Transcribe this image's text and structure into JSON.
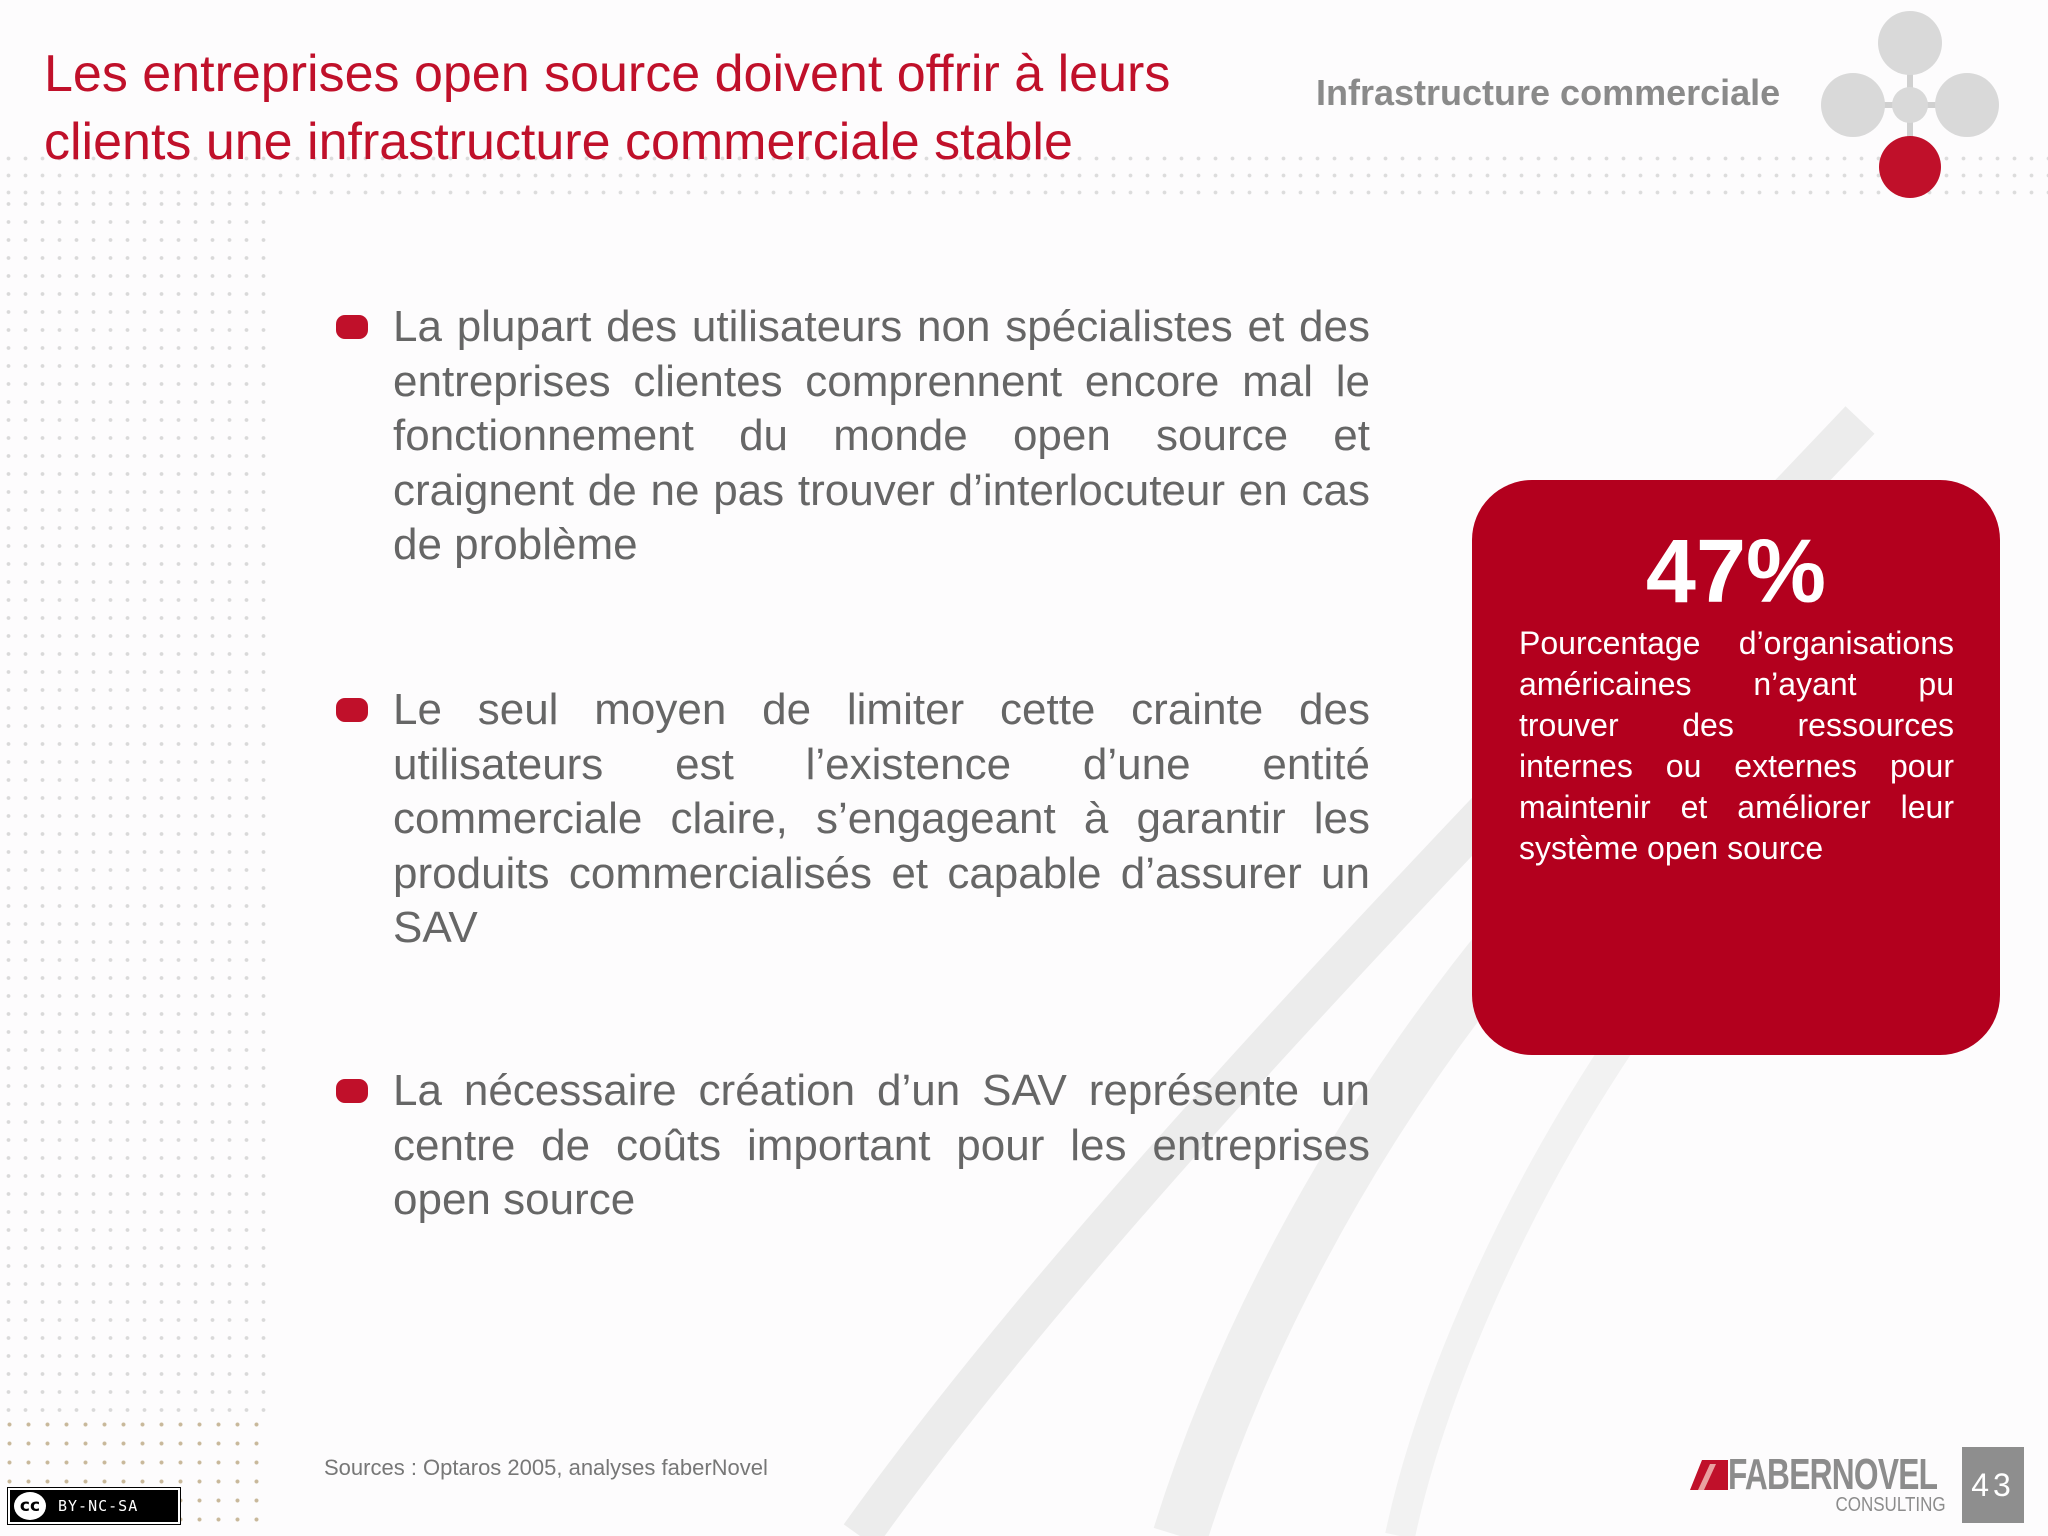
{
  "header": {
    "title_line1": "Les entreprises open source doivent offrir à leurs",
    "title_line2": "clients une infrastructure commerciale stable",
    "section_label": "Infrastructure commerciale"
  },
  "bullets": [
    {
      "text": "La plupart des utilisateurs non spécialistes et des entreprises clientes comprennent encore mal le fonctionnement du monde open source et craignent de ne pas trouver d’interlocuteur en cas de problème"
    },
    {
      "text": "Le seul moyen de limiter cette crainte des utilisateurs est l’existence d’une entité commerciale claire, s’engageant à garantir les produits commercialisés et capable d’assurer un SAV"
    },
    {
      "text": "La nécessaire création d’un SAV représente un centre de coûts important pour les entreprises open source"
    }
  ],
  "stat": {
    "value": "47%",
    "description": "Pourcentage d’organisations américaines n’ayant pu trouver des ressources internes ou externes pour maintenir et améliorer leur système open source"
  },
  "footer": {
    "sources": "Sources : Optaros  2005, analyses faberNovel",
    "license_cc": "cc",
    "license_text": "BY-NC-SA",
    "logo_name": "FABERNOVEL",
    "logo_sub": "CONSULTING",
    "page_number": "43"
  },
  "colors": {
    "accent": "#c0102a",
    "stat_box": "#b3001e",
    "text": "#666666"
  }
}
